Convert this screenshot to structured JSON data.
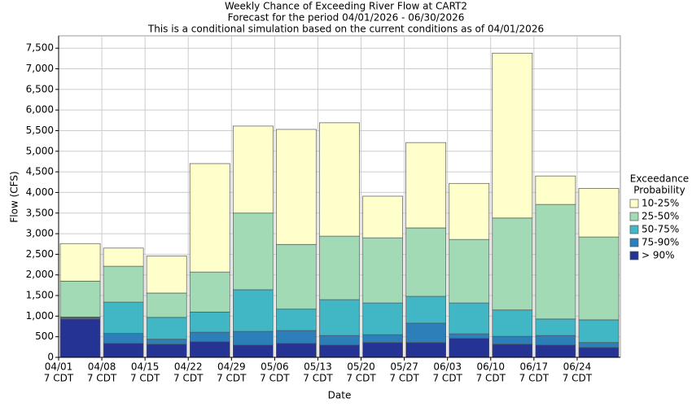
{
  "chart_data": {
    "type": "stacked_bar",
    "title": "Weekly Chance of Exceeding River Flow at CART2",
    "subtitle": "Forecast for the period 04/01/2026 - 06/30/2026",
    "subtitle2": "This is a conditional simulation based on the current conditions as of 04/01/2026",
    "x_label": "Date",
    "y_label": "Flow (CFS)",
    "legend_title": [
      "Exceedance",
      "Probability"
    ],
    "legend_position": "right",
    "categories": [
      "04/01",
      "04/08",
      "04/15",
      "04/22",
      "04/29",
      "05/06",
      "05/13",
      "05/20",
      "05/27",
      "06/03",
      "06/10",
      "06/17",
      "06/24"
    ],
    "category_sublabels": [
      "7 CDT",
      "7 CDT",
      "7 CDT",
      "7 CDT",
      "7 CDT",
      "7 CDT",
      "7 CDT",
      "7 CDT",
      "7 CDT",
      "7 CDT",
      "7 CDT",
      "7 CDT",
      "7 CDT"
    ],
    "series": [
      {
        "name": "10-25%",
        "color": "#ffffcc",
        "values": [
          910,
          440,
          900,
          2630,
          2110,
          2790,
          2750,
          1010,
          2070,
          1360,
          4000,
          690,
          1180
        ]
      },
      {
        "name": "25-50%",
        "color": "#a1dab4",
        "values": [
          870,
          870,
          590,
          970,
          1860,
          1570,
          1540,
          1580,
          1660,
          1540,
          2230,
          2780,
          2010
        ]
      },
      {
        "name": "50-75%",
        "color": "#41b6c4",
        "values": [
          20,
          760,
          530,
          490,
          1010,
          520,
          870,
          770,
          650,
          750,
          640,
          400,
          550
        ]
      },
      {
        "name": "75-90%",
        "color": "#2c7fb8",
        "values": [
          30,
          240,
          120,
          230,
          330,
          310,
          230,
          190,
          470,
          110,
          190,
          230,
          120
        ]
      },
      {
        "name": "> 90%",
        "color": "#253494",
        "values": [
          930,
          340,
          320,
          380,
          300,
          340,
          300,
          360,
          360,
          460,
          320,
          300,
          240
        ]
      }
    ],
    "ylim": [
      0,
      7800
    ],
    "yticks": [
      0,
      500,
      {
        "value": 1000,
        "label": "1,000"
      },
      {
        "value": 1500,
        "label": "1,500"
      },
      {
        "value": 2000,
        "label": "2,000"
      },
      {
        "value": 2500,
        "label": "2,500"
      },
      {
        "value": 3000,
        "label": "3,000"
      },
      {
        "value": 3500,
        "label": "3,500"
      },
      {
        "value": 4000,
        "label": "4,000"
      },
      {
        "value": 4500,
        "label": "4,500"
      },
      {
        "value": 5000,
        "label": "5,000"
      },
      {
        "value": 5500,
        "label": "5,500"
      },
      {
        "value": 6000,
        "label": "6,000"
      },
      {
        "value": 6500,
        "label": "6,500"
      },
      {
        "value": 7000,
        "label": "7,000"
      },
      {
        "value": 7500,
        "label": "7,500"
      }
    ],
    "grid": true
  }
}
